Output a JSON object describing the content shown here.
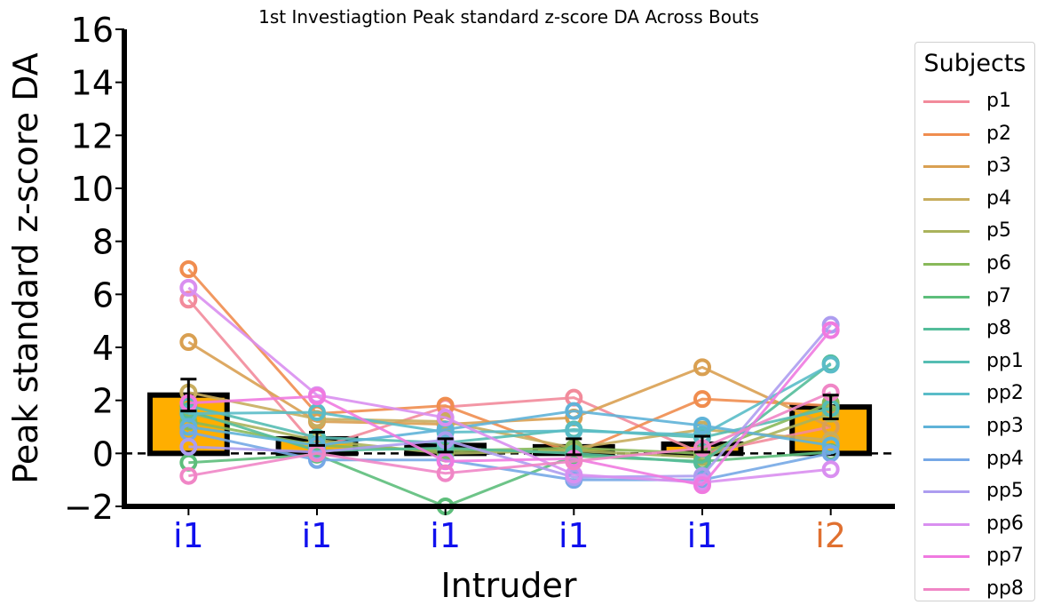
{
  "chart_data": {
    "type": "bar",
    "title": "1st Investiagtion Peak standard z-score DA Across Bouts",
    "xlabel": "Intruder",
    "ylabel": "Peak standard z-score DA",
    "ylim": [
      -2,
      16
    ],
    "yticks": [
      -2,
      0,
      2,
      4,
      6,
      8,
      10,
      12,
      14,
      16
    ],
    "categories": [
      "i1",
      "i1",
      "i1",
      "i1",
      "i1",
      "i2"
    ],
    "category_colors": [
      "#1010ee",
      "#1010ee",
      "#1010ee",
      "#1010ee",
      "#1010ee",
      "#e07030"
    ],
    "bar_values": [
      2.2,
      0.55,
      0.3,
      0.25,
      0.35,
      1.75
    ],
    "bar_errors": [
      0.6,
      0.25,
      0.25,
      0.3,
      0.3,
      0.45
    ],
    "bar_color": "#ffae00",
    "bar_edge_color": "#000000",
    "reference_line": 0,
    "grid": false,
    "legend": {
      "title": "Subjects",
      "placement": "outside-right"
    },
    "series": [
      {
        "name": "p1",
        "color": "#f28b9b",
        "values": [
          5.8,
          0.2,
          1.75,
          2.1,
          0.0,
          1.0
        ]
      },
      {
        "name": "p2",
        "color": "#f08d4f",
        "values": [
          6.95,
          1.5,
          1.8,
          0.0,
          2.05,
          1.8
        ]
      },
      {
        "name": "p3",
        "color": "#d9a052",
        "values": [
          4.2,
          1.2,
          1.1,
          1.35,
          3.25,
          1.0
        ]
      },
      {
        "name": "p4",
        "color": "#c8ad5e",
        "values": [
          2.3,
          1.3,
          1.2,
          0.2,
          0.9,
          0.5
        ]
      },
      {
        "name": "p5",
        "color": "#aab35c",
        "values": [
          1.5,
          0.5,
          0.0,
          0.1,
          -0.15,
          1.5
        ]
      },
      {
        "name": "p6",
        "color": "#88b95a",
        "values": [
          1.2,
          0.3,
          0.1,
          0.2,
          0.0,
          1.9
        ]
      },
      {
        "name": "p7",
        "color": "#5dbe7b",
        "values": [
          -0.35,
          -0.05,
          -2.0,
          -0.1,
          -0.3,
          0.05
        ]
      },
      {
        "name": "p8",
        "color": "#54bd9a",
        "values": [
          1.6,
          0.1,
          0.2,
          0.0,
          -0.35,
          3.4
        ]
      },
      {
        "name": "pp1",
        "color": "#55bdb3",
        "values": [
          1.8,
          0.6,
          0.4,
          0.9,
          0.6,
          1.7
        ]
      },
      {
        "name": "pp2",
        "color": "#5abcc8",
        "values": [
          1.5,
          1.55,
          0.8,
          0.85,
          0.7,
          3.35
        ]
      },
      {
        "name": "pp3",
        "color": "#5fb3d8",
        "values": [
          1.0,
          0.3,
          0.9,
          1.6,
          1.05,
          0.3
        ]
      },
      {
        "name": "pp4",
        "color": "#76a8e6",
        "values": [
          0.8,
          -0.25,
          -0.25,
          -1.0,
          -1.0,
          0.0
        ]
      },
      {
        "name": "pp5",
        "color": "#ad9df0",
        "values": [
          0.25,
          0.05,
          0.5,
          -0.9,
          -0.85,
          4.85
        ]
      },
      {
        "name": "pp6",
        "color": "#d98ff0",
        "values": [
          6.25,
          2.2,
          1.35,
          -0.8,
          -1.1,
          -0.6
        ]
      },
      {
        "name": "pp7",
        "color": "#f07ae0",
        "values": [
          1.9,
          2.15,
          -0.3,
          -0.2,
          -1.2,
          4.65
        ]
      },
      {
        "name": "pp8",
        "color": "#f086c6",
        "values": [
          -0.85,
          0.0,
          -0.75,
          -0.3,
          0.2,
          2.3
        ]
      }
    ]
  }
}
